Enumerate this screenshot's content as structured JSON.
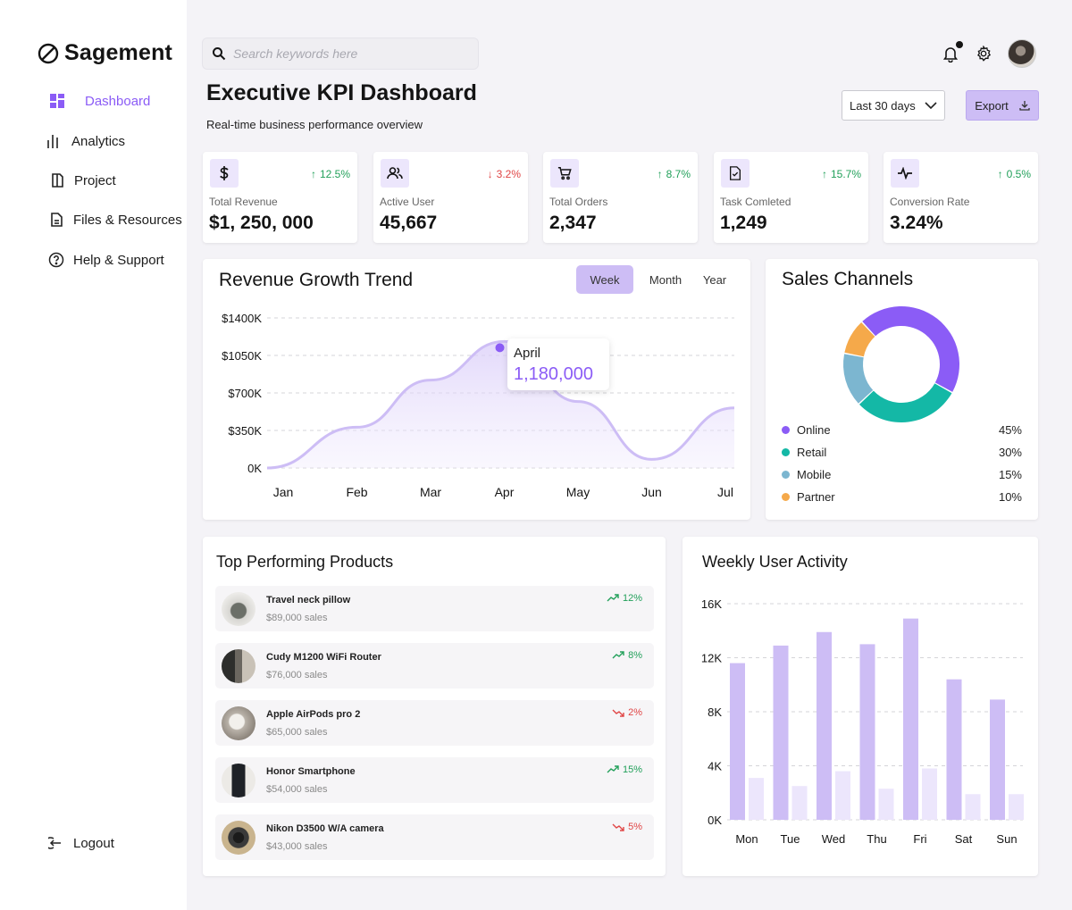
{
  "app": {
    "name": "Sagement"
  },
  "sidebar": {
    "items": [
      {
        "label": "Dashboard",
        "icon": "grid-icon",
        "active": true
      },
      {
        "label": "Analytics",
        "icon": "bars-icon"
      },
      {
        "label": "Project",
        "icon": "box-icon"
      },
      {
        "label": "Files & Resources",
        "icon": "file-icon"
      },
      {
        "label": "Help & Support",
        "icon": "help-icon"
      }
    ],
    "logout": "Logout"
  },
  "search": {
    "placeholder": "Search keywords here"
  },
  "header": {
    "title": "Executive KPI Dashboard",
    "subtitle": "Real-time  business performance overview",
    "range": "Last 30 days",
    "export": "Export"
  },
  "kpis": [
    {
      "label": "Total Revenue",
      "value": "$1, 250, 000",
      "change": "12.5%",
      "dir": "up",
      "icon": "dollar-icon"
    },
    {
      "label": "Active User",
      "value": "45,667",
      "change": "3.2%",
      "dir": "down",
      "icon": "users-icon"
    },
    {
      "label": "Total Orders",
      "value": "2,347",
      "change": "8.7%",
      "dir": "up",
      "icon": "cart-icon"
    },
    {
      "label": "Task Comleted",
      "value": "1,249",
      "change": "15.7%",
      "dir": "up",
      "icon": "file-check-icon"
    },
    {
      "label": "Conversion Rate",
      "value": "3.24%",
      "change": "0.5%",
      "dir": "up",
      "icon": "pulse-icon"
    }
  ],
  "revenue": {
    "title": "Revenue Growth Trend",
    "tabs": [
      "Week",
      "Month",
      "Year"
    ],
    "active_tab": "Week",
    "tooltip": {
      "label": "April",
      "value": "1,180,000"
    }
  },
  "sales_channels": {
    "title": "Sales Channels",
    "items": [
      {
        "name": "Online",
        "pct": "45%",
        "value": 45,
        "color": "#8b5cf6"
      },
      {
        "name": "Retail",
        "pct": "30%",
        "value": 30,
        "color": "#14b8a6"
      },
      {
        "name": "Mobile",
        "pct": "15%",
        "value": 15,
        "color": "#7cb6d0"
      },
      {
        "name": "Partner",
        "pct": "10%",
        "value": 10,
        "color": "#f5a94a"
      }
    ]
  },
  "products": {
    "title": "Top Performing Products",
    "items": [
      {
        "name": "Travel neck pillow",
        "sales": "$89,000 sales",
        "trend": "12%",
        "dir": "up"
      },
      {
        "name": "Cudy M1200 WiFi Router",
        "sales": "$76,000 sales",
        "trend": "8%",
        "dir": "up"
      },
      {
        "name": "Apple AirPods pro 2",
        "sales": "$65,000 sales",
        "trend": "2%",
        "dir": "down"
      },
      {
        "name": "Honor Smartphone",
        "sales": "$54,000 sales",
        "trend": "15%",
        "dir": "up"
      },
      {
        "name": "Nikon D3500 W/A  camera",
        "sales": "$43,000 sales",
        "trend": "5%",
        "dir": "down"
      }
    ]
  },
  "weekly": {
    "title": "Weekly User Activity"
  },
  "chart_data": [
    {
      "type": "area",
      "title": "Revenue Growth Trend",
      "categories": [
        "Jan",
        "Feb",
        "Mar",
        "Apr",
        "May",
        "Jun",
        "Jul"
      ],
      "values": [
        0,
        380000,
        820000,
        1180000,
        620000,
        80000,
        560000
      ],
      "ytick_labels": [
        "$1400K",
        "$1050K",
        "$700K",
        "$350K",
        "0K"
      ],
      "yticks": [
        1400000,
        1050000,
        700000,
        350000,
        0
      ],
      "ylim": [
        0,
        1400000
      ],
      "grid": true
    },
    {
      "type": "pie",
      "title": "Sales Channels",
      "labels": [
        "Online",
        "Retail",
        "Mobile",
        "Partner"
      ],
      "values": [
        45,
        30,
        15,
        10
      ]
    },
    {
      "type": "bar",
      "title": "Weekly User Activity",
      "categories": [
        "Mon",
        "Tue",
        "Wed",
        "Thu",
        "Fri",
        "Sat",
        "Sun"
      ],
      "series": [
        {
          "name": "primary",
          "values": [
            11600,
            12900,
            13900,
            13000,
            14900,
            10400,
            8900
          ],
          "color": "#cdbdf5"
        },
        {
          "name": "secondary",
          "values": [
            3100,
            2500,
            3600,
            2300,
            3800,
            1900,
            1900
          ],
          "color": "#ece6fc"
        }
      ],
      "ytick_labels": [
        "16K",
        "12K",
        "8K",
        "4K",
        "0K"
      ],
      "yticks": [
        16000,
        12000,
        8000,
        4000,
        0
      ],
      "ylim": [
        0,
        16000
      ],
      "grid": true
    }
  ]
}
